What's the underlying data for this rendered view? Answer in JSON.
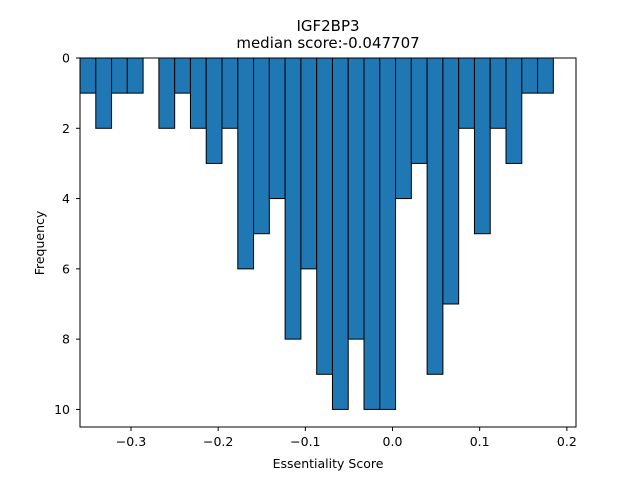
{
  "chart_data": {
    "type": "bar",
    "title": "IGF2BP3",
    "subtitle": "median score:-0.047707",
    "xlabel": "Essentiality Score",
    "ylabel": "Frequency",
    "xlim": [
      -0.3585,
      0.2105
    ],
    "ylim": [
      0,
      10.5
    ],
    "y_inverted": true,
    "bar_color": "#1f77b4",
    "edge_color": "#000000",
    "bin_width": 0.0181,
    "bin_starts": [
      -0.3585,
      -0.3404,
      -0.3223,
      -0.3042,
      -0.2861,
      -0.268,
      -0.2499,
      -0.2318,
      -0.2137,
      -0.1956,
      -0.1775,
      -0.1594,
      -0.1413,
      -0.1232,
      -0.1051,
      -0.087,
      -0.0689,
      -0.0508,
      -0.0327,
      -0.0146,
      0.0035,
      0.0216,
      0.0397,
      0.0578,
      0.0759,
      0.094,
      0.1121,
      0.1302,
      0.1483,
      0.1664
    ],
    "values": [
      1,
      2,
      1,
      1,
      0,
      2,
      1,
      2,
      3,
      2,
      6,
      5,
      4,
      8,
      6,
      9,
      10,
      8,
      10,
      10,
      4,
      3,
      9,
      7,
      2,
      5,
      2,
      3,
      1,
      1
    ],
    "x_ticks": [
      -0.3,
      -0.2,
      -0.1,
      0.0,
      0.1,
      0.2
    ],
    "x_tick_labels": [
      "−0.3",
      "−0.2",
      "−0.1",
      "0.0",
      "0.1",
      "0.2"
    ],
    "y_ticks": [
      0,
      2,
      4,
      6,
      8,
      10
    ],
    "y_tick_labels": [
      "0",
      "2",
      "4",
      "6",
      "8",
      "10"
    ]
  }
}
